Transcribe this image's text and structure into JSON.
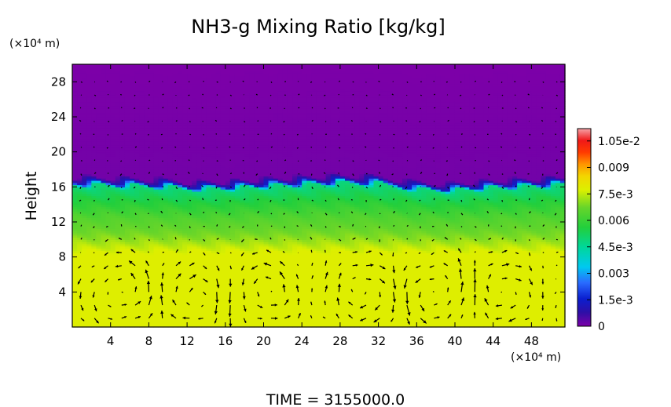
{
  "chart_data": {
    "type": "heatmap",
    "title": "NH3-g Mixing Ratio [kg/kg]",
    "xlabel": "",
    "ylabel": "Height",
    "x_unit": "(×10⁴ m)",
    "y_unit": "(×10⁴ m)",
    "xlim": [
      0,
      51.5
    ],
    "ylim": [
      0,
      30
    ],
    "x_ticks": [
      "4",
      "8",
      "12",
      "16",
      "20",
      "24",
      "28",
      "32",
      "36",
      "40",
      "44",
      "48"
    ],
    "y_ticks": [
      "4",
      "8",
      "12",
      "16",
      "20",
      "24",
      "28"
    ],
    "x_tick_values": [
      4,
      8,
      12,
      16,
      20,
      24,
      28,
      32,
      36,
      40,
      44,
      48
    ],
    "y_tick_values": [
      4,
      8,
      12,
      16,
      20,
      24,
      28
    ],
    "colorbar": {
      "min": 0,
      "max": 0.0112,
      "labels": [
        "0",
        "1.5e-3",
        "0.003",
        "4.5e-3",
        "0.006",
        "7.5e-3",
        "0.009",
        "1.05e-2"
      ],
      "values": [
        0,
        0.0015,
        0.003,
        0.0045,
        0.006,
        0.0075,
        0.009,
        0.0105
      ]
    },
    "field_profile": [
      {
        "height": 0,
        "value": 0.0078
      },
      {
        "height": 8.5,
        "value": 0.0078
      },
      {
        "height": 10.5,
        "value": 0.0069
      },
      {
        "height": 12.5,
        "value": 0.0064
      },
      {
        "height": 14.5,
        "value": 0.0056
      },
      {
        "height": 16.2,
        "value": 0.0048
      },
      {
        "height": 16.6,
        "value": 0.0014
      },
      {
        "height": 17.2,
        "value": 0.0001
      },
      {
        "height": 30,
        "value": 0.0
      }
    ],
    "interface_height": [
      {
        "x": 0,
        "y": 16.6
      },
      {
        "x": 5,
        "y": 16.5
      },
      {
        "x": 10,
        "y": 16.3
      },
      {
        "x": 12,
        "y": 16.0
      },
      {
        "x": 16,
        "y": 16.1
      },
      {
        "x": 20,
        "y": 16.4
      },
      {
        "x": 24,
        "y": 16.6
      },
      {
        "x": 28,
        "y": 16.8
      },
      {
        "x": 32,
        "y": 16.7
      },
      {
        "x": 36,
        "y": 16.0
      },
      {
        "x": 39,
        "y": 15.8
      },
      {
        "x": 44,
        "y": 16.2
      },
      {
        "x": 51.5,
        "y": 16.6
      }
    ],
    "wind_vectors": "quiver field overlay (arrows)",
    "grid": false,
    "legend": "colorbar-right"
  },
  "footer": {
    "time_label": "TIME = 3155000.0"
  },
  "colors": {
    "background": "#ffffff",
    "axes": "#000000"
  }
}
